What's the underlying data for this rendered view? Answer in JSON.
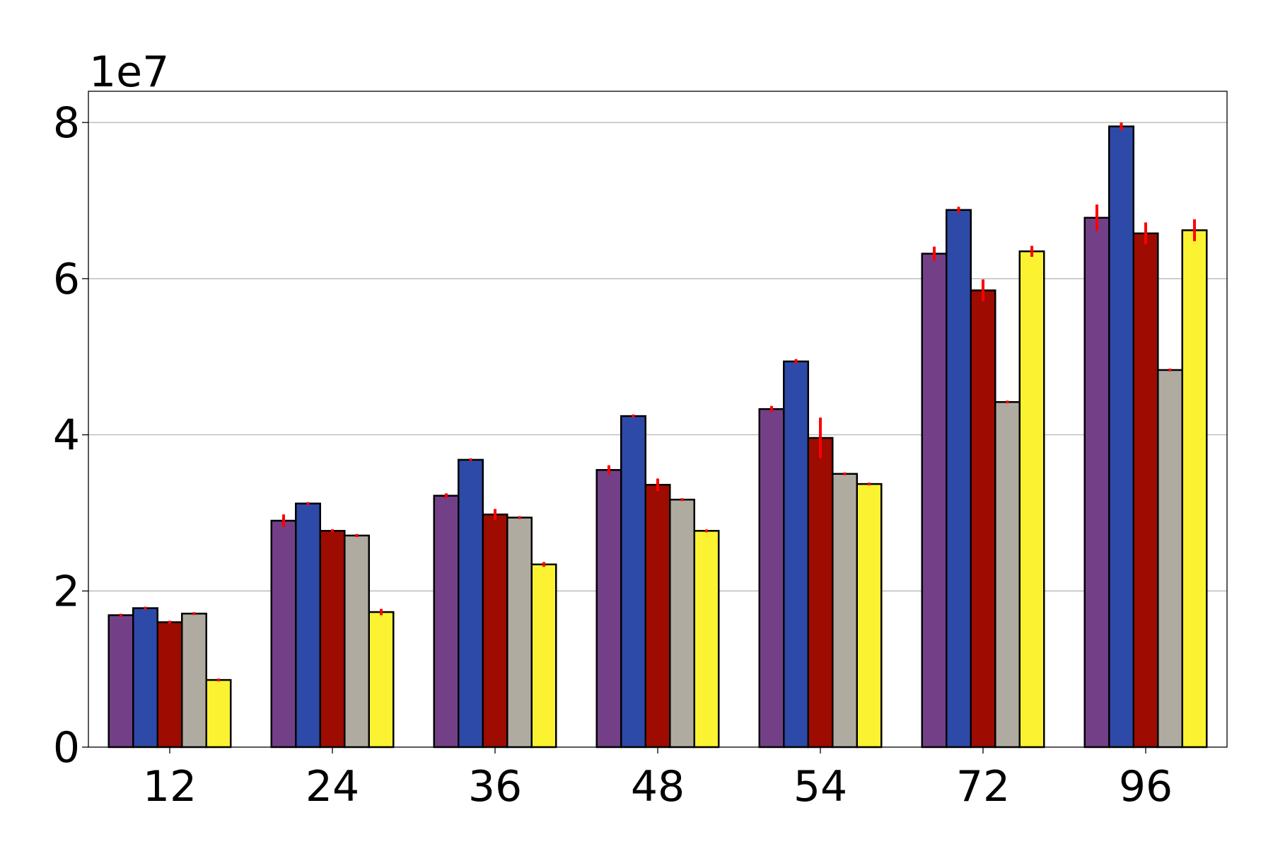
{
  "chart_data": {
    "type": "bar",
    "title": "",
    "xlabel": "",
    "ylabel": "",
    "y_offset_text": "1e7",
    "categories": [
      "12",
      "24",
      "36",
      "48",
      "54",
      "72",
      "96"
    ],
    "ylim": [
      0,
      8.4
    ],
    "yticks": [
      0,
      2,
      4,
      6,
      8
    ],
    "y_unit_scale": 10000000,
    "grid": "horizontal",
    "legend": "none",
    "bar_edge_color": "#000000",
    "error_bar_color": "#ff0000",
    "series": [
      {
        "color": "#734088",
        "values": [
          1.69,
          2.9,
          3.22,
          3.55,
          4.33,
          6.32,
          6.78
        ],
        "errors": [
          0.01,
          0.08,
          0.03,
          0.06,
          0.04,
          0.09,
          0.17
        ]
      },
      {
        "color": "#2e4aa8",
        "values": [
          1.78,
          3.12,
          3.68,
          4.24,
          4.94,
          6.88,
          7.95
        ],
        "errors": [
          0.0,
          0.0,
          0.0,
          0.02,
          0.03,
          0.04,
          0.05
        ]
      },
      {
        "color": "#9e0b00",
        "values": [
          1.6,
          2.77,
          2.98,
          3.36,
          3.96,
          5.85,
          6.58
        ],
        "errors": [
          0.0,
          0.02,
          0.07,
          0.08,
          0.26,
          0.14,
          0.14
        ]
      },
      {
        "color": "#b0aba1",
        "values": [
          1.71,
          2.71,
          2.94,
          3.17,
          3.5,
          4.42,
          4.83
        ],
        "errors": [
          0.0,
          0.02,
          0.0,
          0.0,
          0.0,
          0.0,
          0.0
        ]
      },
      {
        "color": "#fbf232",
        "values": [
          0.86,
          1.73,
          2.34,
          2.77,
          3.37,
          6.35,
          6.62
        ],
        "errors": [
          0.0,
          0.04,
          0.03,
          0.0,
          0.0,
          0.07,
          0.14
        ]
      }
    ]
  }
}
